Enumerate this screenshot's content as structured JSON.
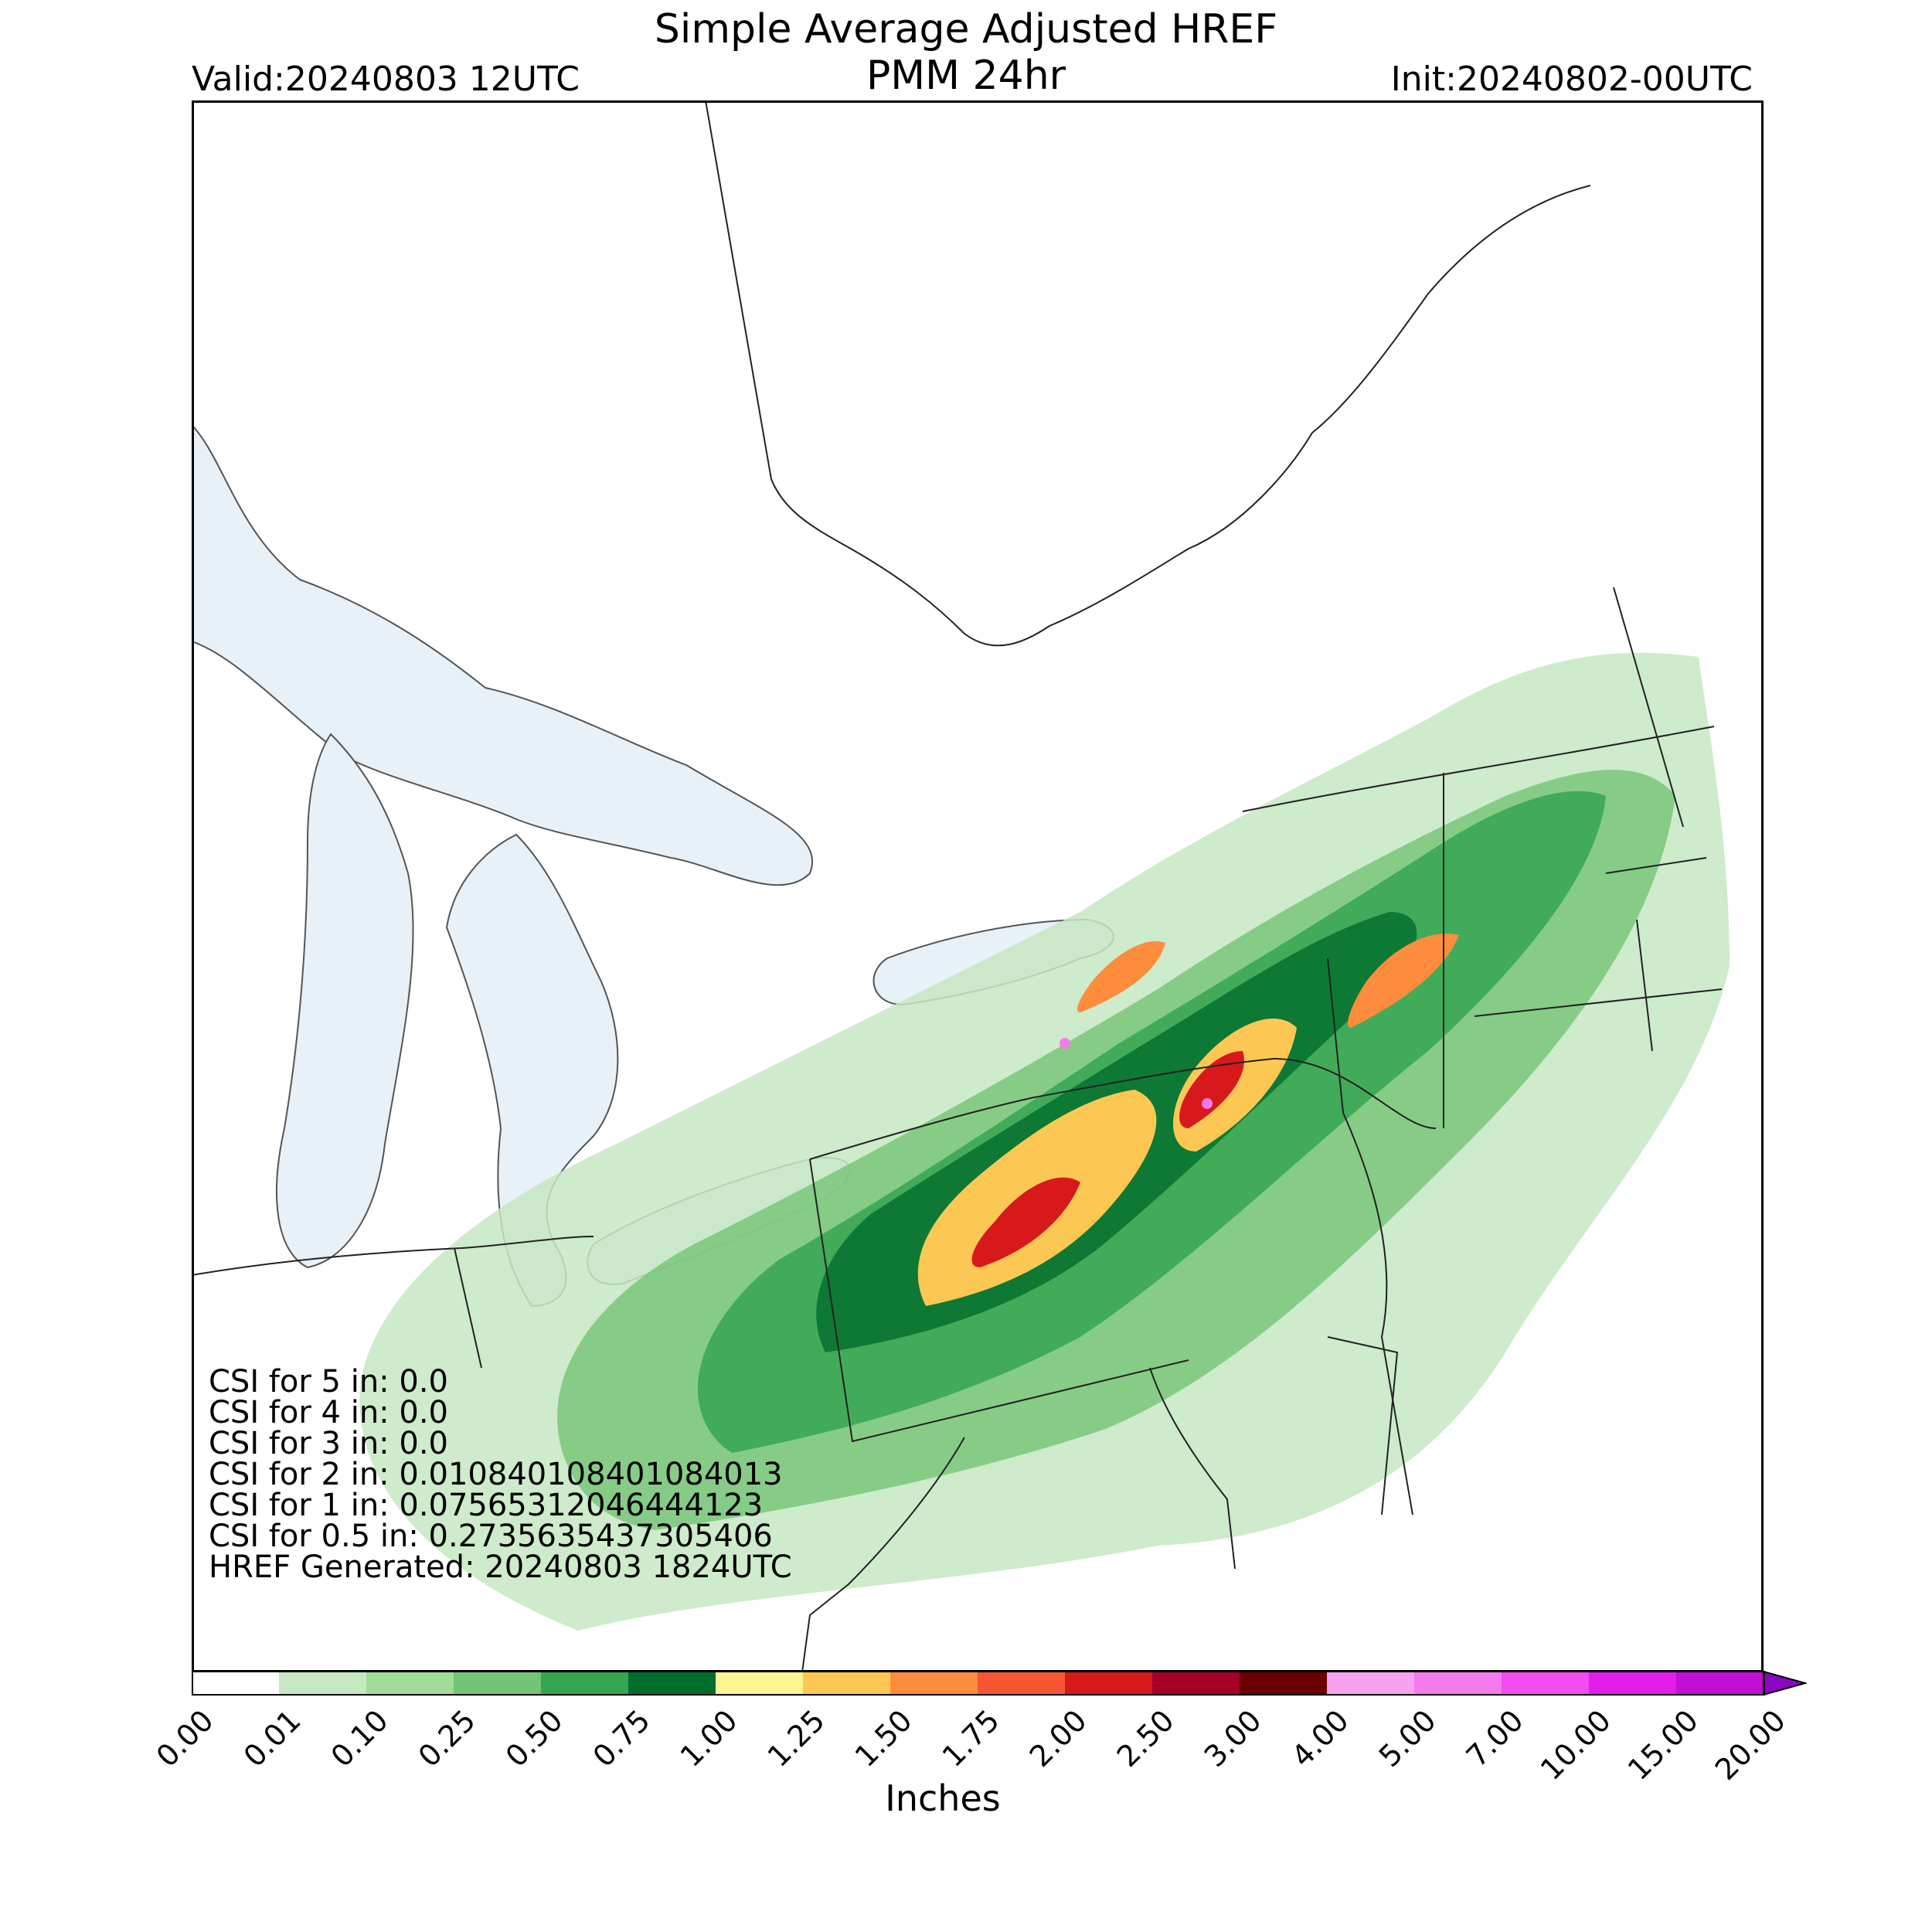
{
  "title_line1": "Simple Average Adjusted HREF",
  "title_line2": "PMM 24hr",
  "valid_label": "Valid:20240803 12UTC",
  "init_label": "Init:20240802-00UTC",
  "stats": [
    "CSI for 5 in: 0.0",
    "CSI for 4 in: 0.0",
    "CSI for 3 in: 0.0",
    "CSI for 2 in: 0.010840108401084013",
    "CSI for 1 in: 0.07565312046444123",
    "CSI for 0.5 in: 0.2735635437305406",
    "HREF Generated: 20240803 1824UTC"
  ],
  "colorbar": {
    "label": "Inches",
    "ticks": [
      "0.00",
      "0.01",
      "0.10",
      "0.25",
      "0.50",
      "0.75",
      "1.00",
      "1.25",
      "1.50",
      "1.75",
      "2.00",
      "2.50",
      "3.00",
      "4.00",
      "5.00",
      "7.00",
      "10.00",
      "15.00",
      "20.00"
    ],
    "colors": [
      "#ffffff",
      "#c6e8c2",
      "#a1db98",
      "#74c476",
      "#35a552",
      "#006d2c",
      "#fef590",
      "#fdc754",
      "#fd8d3c",
      "#f55735",
      "#d7191c",
      "#a50026",
      "#6b0000",
      "#f7a3f0",
      "#f57aee",
      "#f24bef",
      "#e21ce9",
      "#c10fd6",
      "#8a06c2"
    ]
  }
}
